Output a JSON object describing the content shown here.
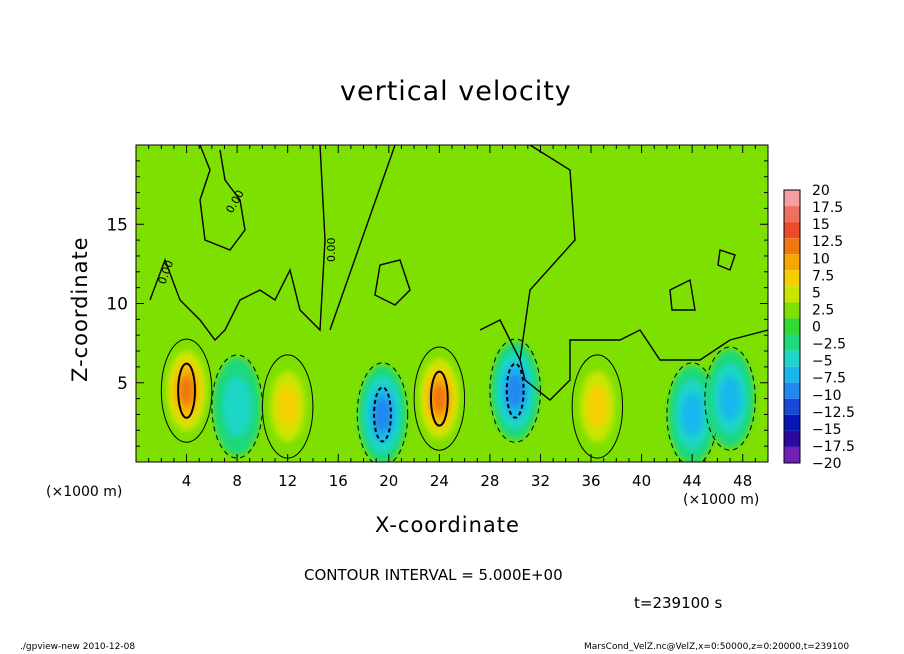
{
  "chart_data": {
    "type": "heatmap",
    "title": "vertical velocity",
    "xlabel": "X-coordinate",
    "ylabel": "Z-coordinate",
    "x_unit_label": "(×1000 m)",
    "xlim": [
      0,
      50
    ],
    "ylim": [
      0,
      20
    ],
    "x_ticks": [
      4,
      8,
      12,
      16,
      20,
      24,
      28,
      32,
      36,
      40,
      44,
      48
    ],
    "x_tick_labels": [
      "4",
      "8",
      "12",
      "16",
      "20",
      "24",
      "28",
      "32",
      "36",
      "40",
      "44",
      "48"
    ],
    "y_ticks": [
      5,
      10,
      15
    ],
    "y_tick_labels": [
      "5",
      "10",
      "15"
    ],
    "colorbar": {
      "levels": [
        20,
        17.5,
        15,
        12.5,
        10,
        7.5,
        5,
        2.5,
        0,
        -2.5,
        -5,
        -7.5,
        -10,
        -12.5,
        -15,
        -17.5,
        -20
      ],
      "labels": [
        "20",
        "17.5",
        "15",
        "12.5",
        "10",
        "7.5",
        "5",
        "2.5",
        "0",
        "−2.5",
        "−5",
        "−7.5",
        "−10",
        "−12.5",
        "−15",
        "−17.5",
        "−20"
      ],
      "colors": [
        "#f4a0a0",
        "#f07060",
        "#ee4a2a",
        "#f07810",
        "#f7a800",
        "#f5d000",
        "#c8e600",
        "#7ee000",
        "#33d833",
        "#1ed87c",
        "#1ed6c6",
        "#18b8ee",
        "#2288ee",
        "#1848d8",
        "#0818b8",
        "#2a0aa0",
        "#7020b8"
      ]
    },
    "cells": [
      {
        "x": 4,
        "z": 4.5,
        "value": 13
      },
      {
        "x": 8,
        "z": 3.5,
        "value": -6
      },
      {
        "x": 12,
        "z": 3.5,
        "value": 8
      },
      {
        "x": 19.5,
        "z": 3.0,
        "value": -11
      },
      {
        "x": 24,
        "z": 4.0,
        "value": 14
      },
      {
        "x": 30,
        "z": 4.5,
        "value": -11
      },
      {
        "x": 36.5,
        "z": 3.5,
        "value": 9
      },
      {
        "x": 44,
        "z": 3.0,
        "value": -8
      },
      {
        "x": 47,
        "z": 4.0,
        "value": -8
      }
    ],
    "contour_labels": [
      "0.00",
      "0.00",
      "0.00",
      "0.00"
    ],
    "contour_interval": "CONTOUR INTERVAL = 5.000E+00",
    "time_label": "t=239100 s",
    "grid": false
  },
  "footer": {
    "left": "./gpview-new   2010-12-08",
    "right": "MarsCond_VelZ.nc@VelZ,x=0:50000,z=0:20000,t=239100"
  }
}
